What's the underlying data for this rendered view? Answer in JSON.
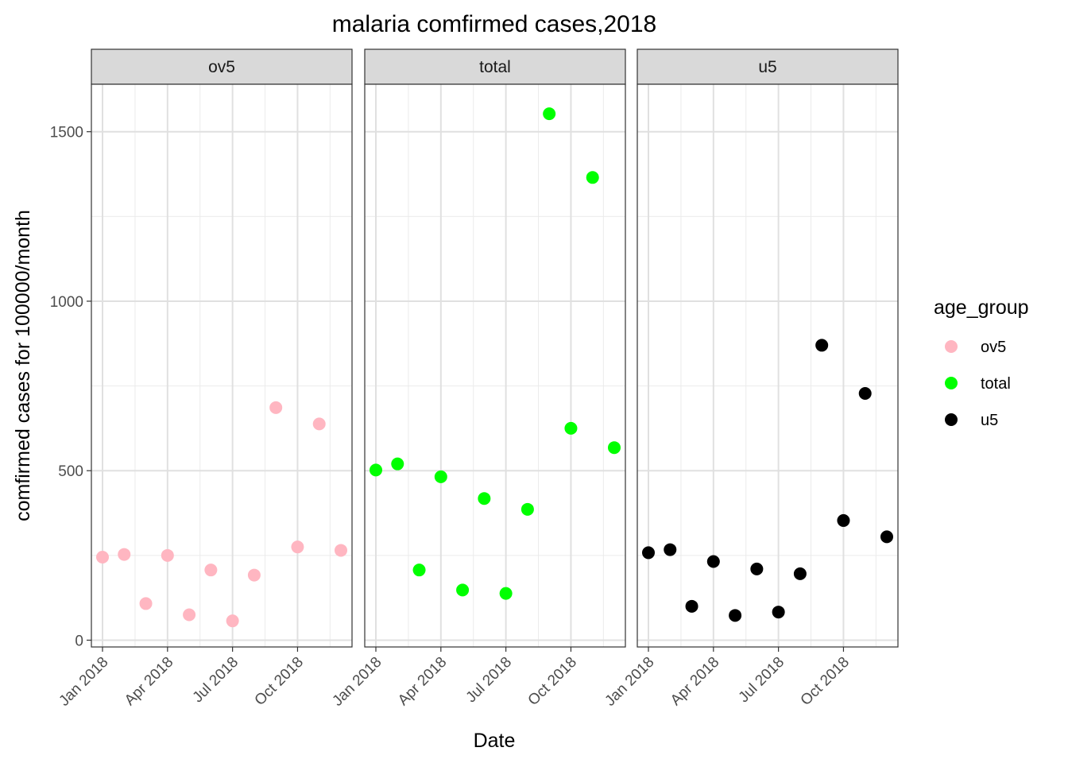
{
  "chart_data": {
    "type": "scatter",
    "title": "malaria comfirmed cases,2018",
    "xlabel": "Date",
    "ylabel": "comfirmed cases for 100000/month",
    "x": [
      "2018-01",
      "2018-02",
      "2018-03",
      "2018-04",
      "2018-05",
      "2018-06",
      "2018-07",
      "2018-08",
      "2018-09",
      "2018-10",
      "2018-11",
      "2018-12"
    ],
    "x_ticks": [
      "Jan 2018",
      "Apr 2018",
      "Jul 2018",
      "Oct 2018"
    ],
    "y_ticks": [
      0,
      500,
      1000,
      1500
    ],
    "ylim": [
      -20,
      1640
    ],
    "grid": true,
    "legend": {
      "title": "age_group",
      "position": "right"
    },
    "facets": [
      "ov5",
      "total",
      "u5"
    ],
    "series": [
      {
        "name": "ov5",
        "color": "#FFB6C1",
        "values": [
          245,
          253,
          108,
          250,
          75,
          207,
          57,
          192,
          686,
          275,
          638,
          265
        ]
      },
      {
        "name": "total",
        "color": "#00FF00",
        "values": [
          502,
          520,
          207,
          482,
          148,
          418,
          138,
          386,
          1553,
          625,
          1365,
          568
        ]
      },
      {
        "name": "u5",
        "color": "#000000",
        "values": [
          258,
          267,
          100,
          232,
          73,
          210,
          83,
          196,
          870,
          353,
          728,
          305
        ]
      }
    ]
  }
}
